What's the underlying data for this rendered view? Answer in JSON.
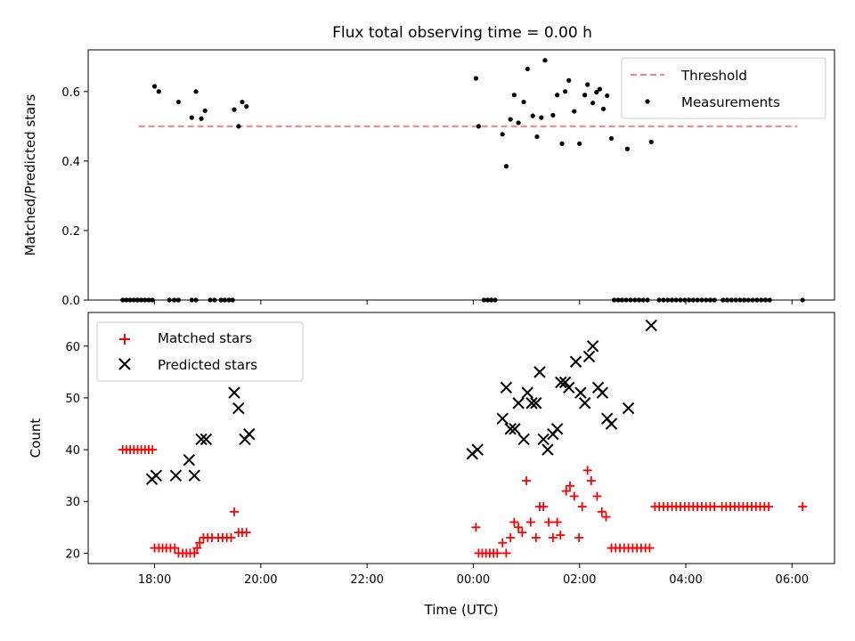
{
  "chart_data": [
    {
      "type": "scatter",
      "title": "Flux total observing time = 0.00 h",
      "ylabel": "Matched/Predicted stars",
      "xlabel": "",
      "x_unit": "hours since 00:00 UTC (negative = previous evening)",
      "xlim": [
        -7.25,
        6.8
      ],
      "ylim": [
        0,
        0.72
      ],
      "x_ticks": [
        -6,
        -4,
        -2,
        0,
        2,
        4,
        6
      ],
      "x_tick_labels": [],
      "y_ticks": [
        0.0,
        0.2,
        0.4,
        0.6
      ],
      "y_tick_labels": [
        "0.0",
        "0.2",
        "0.4",
        "0.6"
      ],
      "legend_position": "top-right",
      "threshold": {
        "name": "Threshold",
        "y": 0.5,
        "x_range": [
          -6.3,
          6.1
        ],
        "color": "#ff7f7f",
        "style": "dashed"
      },
      "series": [
        {
          "name": "Measurements",
          "color": "#000000",
          "marker": "dot",
          "points": [
            [
              -6.0,
              0.615
            ],
            [
              -5.92,
              0.6
            ],
            [
              -5.55,
              0.57
            ],
            [
              -5.3,
              0.525
            ],
            [
              -5.22,
              0.6
            ],
            [
              -5.12,
              0.522
            ],
            [
              -5.05,
              0.545
            ],
            [
              -4.5,
              0.548
            ],
            [
              -4.42,
              0.5
            ],
            [
              -4.35,
              0.57
            ],
            [
              -4.27,
              0.557
            ],
            [
              0.05,
              0.638
            ],
            [
              0.1,
              0.5
            ],
            [
              0.55,
              0.477
            ],
            [
              0.62,
              0.385
            ],
            [
              0.7,
              0.52
            ],
            [
              0.77,
              0.59
            ],
            [
              0.85,
              0.51
            ],
            [
              0.95,
              0.57
            ],
            [
              1.02,
              0.665
            ],
            [
              1.12,
              0.53
            ],
            [
              1.2,
              0.47
            ],
            [
              1.28,
              0.525
            ],
            [
              1.35,
              0.69
            ],
            [
              1.5,
              0.532
            ],
            [
              1.58,
              0.59
            ],
            [
              1.67,
              0.45
            ],
            [
              1.73,
              0.6
            ],
            [
              1.8,
              0.632
            ],
            [
              1.9,
              0.543
            ],
            [
              2.0,
              0.45
            ],
            [
              2.1,
              0.59
            ],
            [
              2.15,
              0.62
            ],
            [
              2.25,
              0.567
            ],
            [
              2.32,
              0.598
            ],
            [
              2.38,
              0.607
            ],
            [
              2.45,
              0.55
            ],
            [
              2.52,
              0.588
            ],
            [
              2.6,
              0.465
            ],
            [
              2.9,
              0.435
            ],
            [
              3.35,
              0.455
            ],
            [
              -6.6,
              0
            ],
            [
              -6.53,
              0
            ],
            [
              -6.46,
              0
            ],
            [
              -6.39,
              0
            ],
            [
              -6.32,
              0
            ],
            [
              -6.25,
              0
            ],
            [
              -6.18,
              0
            ],
            [
              -6.11,
              0
            ],
            [
              -6.04,
              0
            ],
            [
              -5.72,
              0
            ],
            [
              -5.63,
              0
            ],
            [
              -5.55,
              0
            ],
            [
              -5.3,
              0
            ],
            [
              -5.22,
              0
            ],
            [
              -4.95,
              0
            ],
            [
              -4.87,
              0
            ],
            [
              -4.75,
              0
            ],
            [
              -4.68,
              0
            ],
            [
              -4.6,
              0
            ],
            [
              -4.53,
              0
            ],
            [
              0.2,
              0
            ],
            [
              0.27,
              0
            ],
            [
              0.34,
              0
            ],
            [
              0.41,
              0
            ],
            [
              2.65,
              0
            ],
            [
              2.73,
              0
            ],
            [
              2.8,
              0
            ],
            [
              2.88,
              0
            ],
            [
              2.96,
              0
            ],
            [
              3.04,
              0
            ],
            [
              3.12,
              0
            ],
            [
              3.2,
              0
            ],
            [
              3.28,
              0
            ],
            [
              3.5,
              0
            ],
            [
              3.58,
              0
            ],
            [
              3.66,
              0
            ],
            [
              3.74,
              0
            ],
            [
              3.82,
              0
            ],
            [
              3.9,
              0
            ],
            [
              3.98,
              0
            ],
            [
              4.06,
              0
            ],
            [
              4.14,
              0
            ],
            [
              4.22,
              0
            ],
            [
              4.3,
              0
            ],
            [
              4.38,
              0
            ],
            [
              4.46,
              0
            ],
            [
              4.54,
              0
            ],
            [
              4.7,
              0
            ],
            [
              4.78,
              0
            ],
            [
              4.86,
              0
            ],
            [
              4.94,
              0
            ],
            [
              5.02,
              0
            ],
            [
              5.1,
              0
            ],
            [
              5.18,
              0
            ],
            [
              5.26,
              0
            ],
            [
              5.34,
              0
            ],
            [
              5.42,
              0
            ],
            [
              5.5,
              0
            ],
            [
              5.58,
              0
            ],
            [
              6.2,
              0
            ]
          ]
        }
      ]
    },
    {
      "type": "scatter",
      "title": "",
      "ylabel": "Count",
      "xlabel": "Time (UTC)",
      "xlim": [
        -7.25,
        6.8
      ],
      "ylim": [
        18,
        66.5
      ],
      "x_ticks": [
        -6,
        -4,
        -2,
        0,
        2,
        4,
        6
      ],
      "x_tick_labels": [
        "18:00",
        "20:00",
        "22:00",
        "00:00",
        "02:00",
        "04:00",
        "06:00"
      ],
      "y_ticks": [
        20,
        30,
        40,
        50,
        60
      ],
      "y_tick_labels": [
        "20",
        "30",
        "40",
        "50",
        "60"
      ],
      "legend_position": "top-left",
      "series": [
        {
          "name": "Matched stars",
          "color": "#ff0000",
          "marker": "plus",
          "points": [
            [
              -6.6,
              40
            ],
            [
              -6.53,
              40
            ],
            [
              -6.46,
              40
            ],
            [
              -6.39,
              40
            ],
            [
              -6.32,
              40
            ],
            [
              -6.25,
              40
            ],
            [
              -6.18,
              40
            ],
            [
              -6.11,
              40
            ],
            [
              -6.04,
              40
            ],
            [
              -6.0,
              21
            ],
            [
              -5.92,
              21
            ],
            [
              -5.85,
              21
            ],
            [
              -5.78,
              21
            ],
            [
              -5.7,
              21
            ],
            [
              -5.62,
              21
            ],
            [
              -5.55,
              20
            ],
            [
              -5.47,
              20
            ],
            [
              -5.4,
              20
            ],
            [
              -5.33,
              20
            ],
            [
              -5.25,
              20
            ],
            [
              -5.2,
              21
            ],
            [
              -5.15,
              22
            ],
            [
              -5.08,
              23
            ],
            [
              -5.0,
              23
            ],
            [
              -4.92,
              23
            ],
            [
              -4.8,
              23
            ],
            [
              -4.72,
              23
            ],
            [
              -4.64,
              23
            ],
            [
              -4.56,
              23
            ],
            [
              -4.5,
              28
            ],
            [
              -4.42,
              24
            ],
            [
              -4.35,
              24
            ],
            [
              -4.27,
              24
            ],
            [
              0.05,
              25
            ],
            [
              0.1,
              20
            ],
            [
              0.17,
              20
            ],
            [
              0.24,
              20
            ],
            [
              0.31,
              20
            ],
            [
              0.38,
              20
            ],
            [
              0.45,
              20
            ],
            [
              0.55,
              22
            ],
            [
              0.62,
              20
            ],
            [
              0.7,
              23
            ],
            [
              0.77,
              26
            ],
            [
              0.85,
              25
            ],
            [
              0.92,
              24
            ],
            [
              1.0,
              34
            ],
            [
              1.08,
              26
            ],
            [
              1.18,
              23
            ],
            [
              1.25,
              29
            ],
            [
              1.32,
              29
            ],
            [
              1.42,
              26
            ],
            [
              1.5,
              23
            ],
            [
              1.58,
              26
            ],
            [
              1.64,
              23.5
            ],
            [
              1.75,
              32
            ],
            [
              1.82,
              33
            ],
            [
              1.9,
              31
            ],
            [
              1.99,
              23
            ],
            [
              2.05,
              29
            ],
            [
              2.15,
              36
            ],
            [
              2.22,
              34
            ],
            [
              2.33,
              31
            ],
            [
              2.42,
              28
            ],
            [
              2.5,
              27
            ],
            [
              2.6,
              21
            ],
            [
              2.68,
              21
            ],
            [
              2.76,
              21
            ],
            [
              2.84,
              21
            ],
            [
              2.92,
              21
            ],
            [
              3.0,
              21
            ],
            [
              3.08,
              21
            ],
            [
              3.16,
              21
            ],
            [
              3.24,
              21
            ],
            [
              3.32,
              21
            ],
            [
              3.42,
              29
            ],
            [
              3.5,
              29
            ],
            [
              3.58,
              29
            ],
            [
              3.66,
              29
            ],
            [
              3.74,
              29
            ],
            [
              3.82,
              29
            ],
            [
              3.9,
              29
            ],
            [
              3.98,
              29
            ],
            [
              4.06,
              29
            ],
            [
              4.14,
              29
            ],
            [
              4.22,
              29
            ],
            [
              4.3,
              29
            ],
            [
              4.38,
              29
            ],
            [
              4.46,
              29
            ],
            [
              4.54,
              29
            ],
            [
              4.68,
              29
            ],
            [
              4.76,
              29
            ],
            [
              4.84,
              29
            ],
            [
              4.92,
              29
            ],
            [
              5.0,
              29
            ],
            [
              5.08,
              29
            ],
            [
              5.16,
              29
            ],
            [
              5.24,
              29
            ],
            [
              5.32,
              29
            ],
            [
              5.4,
              29
            ],
            [
              5.48,
              29
            ],
            [
              5.56,
              29
            ],
            [
              6.2,
              29
            ]
          ]
        },
        {
          "name": "Predicted stars",
          "color": "#000000",
          "marker": "x",
          "points": [
            [
              -6.05,
              34.3
            ],
            [
              -5.97,
              35
            ],
            [
              -5.6,
              35
            ],
            [
              -5.35,
              38
            ],
            [
              -5.25,
              35
            ],
            [
              -5.12,
              42
            ],
            [
              -5.03,
              42
            ],
            [
              -4.5,
              51
            ],
            [
              -4.42,
              48
            ],
            [
              -4.3,
              42
            ],
            [
              -4.22,
              43
            ],
            [
              -0.02,
              39.2
            ],
            [
              0.08,
              40
            ],
            [
              0.55,
              46
            ],
            [
              0.62,
              52
            ],
            [
              0.7,
              44
            ],
            [
              0.78,
              44
            ],
            [
              0.85,
              49
            ],
            [
              0.95,
              42
            ],
            [
              1.02,
              51
            ],
            [
              1.1,
              49
            ],
            [
              1.18,
              49
            ],
            [
              1.25,
              55
            ],
            [
              1.32,
              42
            ],
            [
              1.4,
              40
            ],
            [
              1.5,
              43
            ],
            [
              1.58,
              44
            ],
            [
              1.65,
              53
            ],
            [
              1.73,
              53
            ],
            [
              1.8,
              52
            ],
            [
              1.93,
              57
            ],
            [
              2.02,
              51
            ],
            [
              2.1,
              49
            ],
            [
              2.18,
              58
            ],
            [
              2.25,
              60
            ],
            [
              2.35,
              52
            ],
            [
              2.43,
              51
            ],
            [
              2.52,
              46
            ],
            [
              2.6,
              45
            ],
            [
              2.92,
              48
            ],
            [
              3.35,
              64
            ]
          ]
        }
      ]
    }
  ]
}
